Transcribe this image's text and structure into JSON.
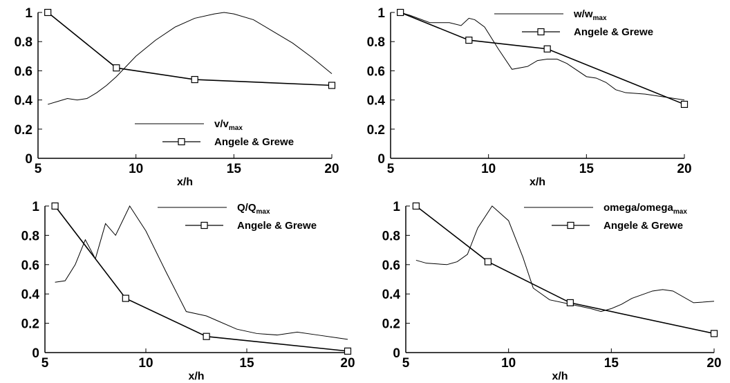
{
  "chart_data": [
    {
      "type": "line",
      "xlabel": "x/h",
      "xlim": [
        5,
        20
      ],
      "ylim": [
        0,
        1
      ],
      "xticks": [
        5,
        10,
        15,
        20
      ],
      "yticks": [
        0,
        0.2,
        0.4,
        0.6,
        0.8,
        1
      ],
      "legend": "lower center",
      "series": [
        {
          "name": "v/v",
          "name_subscript": "max",
          "color": "#000000",
          "marker": "none",
          "x": [
            5.5,
            6,
            6.5,
            7,
            7.5,
            8,
            8.5,
            9,
            10,
            11,
            12,
            13,
            14,
            14.5,
            15,
            16,
            17,
            18,
            19,
            20
          ],
          "values": [
            0.37,
            0.39,
            0.41,
            0.4,
            0.41,
            0.45,
            0.5,
            0.56,
            0.7,
            0.81,
            0.9,
            0.96,
            0.99,
            1.0,
            0.99,
            0.95,
            0.87,
            0.79,
            0.69,
            0.58
          ]
        },
        {
          "name": "Angele & Grewe",
          "color": "#000000",
          "marker": "square",
          "x": [
            5.5,
            9,
            13,
            20
          ],
          "values": [
            1.0,
            0.62,
            0.54,
            0.5
          ]
        }
      ]
    },
    {
      "type": "line",
      "xlabel": "x/h",
      "xlim": [
        5,
        20
      ],
      "ylim": [
        0,
        1
      ],
      "xticks": [
        5,
        10,
        15,
        20
      ],
      "yticks": [
        0,
        0.2,
        0.4,
        0.6,
        0.8,
        1
      ],
      "legend": "upper right",
      "series": [
        {
          "name": "w/w",
          "name_subscript": "max",
          "color": "#000000",
          "marker": "none",
          "x": [
            5.5,
            6,
            7,
            8,
            8.6,
            9,
            9.3,
            9.8,
            10.5,
            11.2,
            12,
            12.5,
            13,
            13.5,
            14,
            15,
            15.5,
            16,
            16.5,
            17,
            18,
            19,
            20
          ],
          "values": [
            1.0,
            0.98,
            0.93,
            0.93,
            0.91,
            0.96,
            0.95,
            0.9,
            0.75,
            0.61,
            0.63,
            0.67,
            0.68,
            0.68,
            0.65,
            0.56,
            0.55,
            0.52,
            0.47,
            0.45,
            0.44,
            0.42,
            0.4
          ]
        },
        {
          "name": "Angele & Grewe",
          "color": "#000000",
          "marker": "square",
          "x": [
            5.5,
            9,
            13,
            20
          ],
          "values": [
            1.0,
            0.81,
            0.75,
            0.37
          ]
        }
      ]
    },
    {
      "type": "line",
      "xlabel": "x/h",
      "xlim": [
        5,
        20
      ],
      "ylim": [
        0,
        1
      ],
      "xticks": [
        5,
        10,
        15,
        20
      ],
      "yticks": [
        0,
        0.2,
        0.4,
        0.6,
        0.8,
        1
      ],
      "legend": "upper right",
      "series": [
        {
          "name": "Q/Q",
          "name_subscript": "max",
          "color": "#000000",
          "marker": "none",
          "x": [
            5.5,
            6,
            6.5,
            7,
            7.5,
            8,
            8.5,
            9.2,
            10,
            11,
            12,
            13,
            13.5,
            14.5,
            15.5,
            16.5,
            17.5,
            18.5,
            19.5,
            20
          ],
          "values": [
            0.48,
            0.49,
            0.6,
            0.77,
            0.64,
            0.88,
            0.8,
            1.0,
            0.83,
            0.55,
            0.28,
            0.25,
            0.22,
            0.16,
            0.13,
            0.12,
            0.14,
            0.12,
            0.1,
            0.09
          ]
        },
        {
          "name": "Angele & Grewe",
          "color": "#000000",
          "marker": "square",
          "x": [
            5.5,
            9,
            13,
            20
          ],
          "values": [
            1.0,
            0.37,
            0.11,
            0.01
          ]
        }
      ]
    },
    {
      "type": "line",
      "xlabel": "x/h",
      "xlim": [
        5,
        20
      ],
      "ylim": [
        0,
        1
      ],
      "xticks": [
        5,
        10,
        15,
        20
      ],
      "yticks": [
        0,
        0.2,
        0.4,
        0.6,
        0.8,
        1
      ],
      "legend": "upper right",
      "series": [
        {
          "name": "omega/omega",
          "name_subscript": "max",
          "color": "#000000",
          "marker": "none",
          "x": [
            5.5,
            6,
            7,
            7.5,
            8,
            8.5,
            9.2,
            10,
            10.7,
            11.2,
            12,
            13,
            14,
            14.5,
            15,
            15.5,
            16,
            17,
            17.5,
            18,
            19,
            20
          ],
          "values": [
            0.63,
            0.61,
            0.6,
            0.62,
            0.67,
            0.85,
            1.0,
            0.9,
            0.65,
            0.44,
            0.36,
            0.33,
            0.3,
            0.28,
            0.3,
            0.33,
            0.37,
            0.42,
            0.43,
            0.42,
            0.34,
            0.35
          ]
        },
        {
          "name": "Angele & Grewe",
          "color": "#000000",
          "marker": "square",
          "x": [
            5.5,
            9,
            13,
            20
          ],
          "values": [
            1.0,
            0.62,
            0.34,
            0.13
          ]
        }
      ]
    }
  ]
}
